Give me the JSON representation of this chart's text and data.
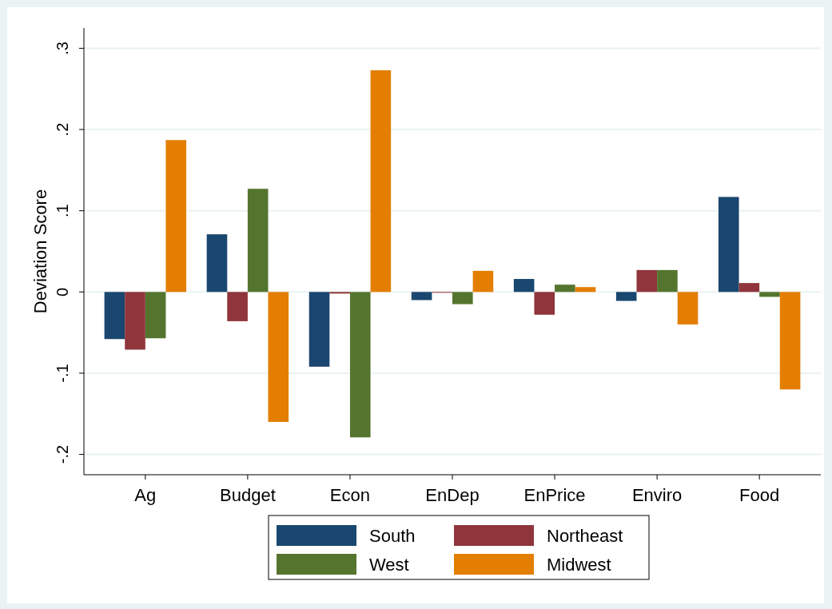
{
  "chart_data": {
    "type": "bar",
    "ylabel": "Deviation Score",
    "categories": [
      "Ag",
      "Budget",
      "Econ",
      "EnDep",
      "EnPrice",
      "Enviro",
      "Food"
    ],
    "series": [
      {
        "name": "South",
        "color": "#1a476f",
        "values": [
          -0.058,
          0.071,
          -0.092,
          -0.01,
          0.016,
          -0.011,
          0.117
        ]
      },
      {
        "name": "Northeast",
        "color": "#90353b",
        "values": [
          -0.071,
          -0.036,
          -0.002,
          -0.001,
          -0.028,
          0.027,
          0.011
        ]
      },
      {
        "name": "West",
        "color": "#55752f",
        "values": [
          -0.057,
          0.127,
          -0.179,
          -0.015,
          0.009,
          0.027,
          -0.006
        ]
      },
      {
        "name": "Midwest",
        "color": "#e37e00",
        "values": [
          0.187,
          -0.16,
          0.273,
          0.026,
          0.006,
          -0.04,
          -0.12
        ]
      }
    ],
    "ylim": [
      -0.225,
      0.325
    ],
    "yticks": [
      {
        "value": -0.2,
        "label": "-.2"
      },
      {
        "value": -0.1,
        "label": "-.1"
      },
      0,
      {
        "value": 0.1,
        "label": ".1"
      },
      {
        "value": 0.2,
        "label": ".2"
      },
      {
        "value": 0.3,
        "label": ".3"
      }
    ],
    "grid": "y",
    "legend": "bottom"
  }
}
